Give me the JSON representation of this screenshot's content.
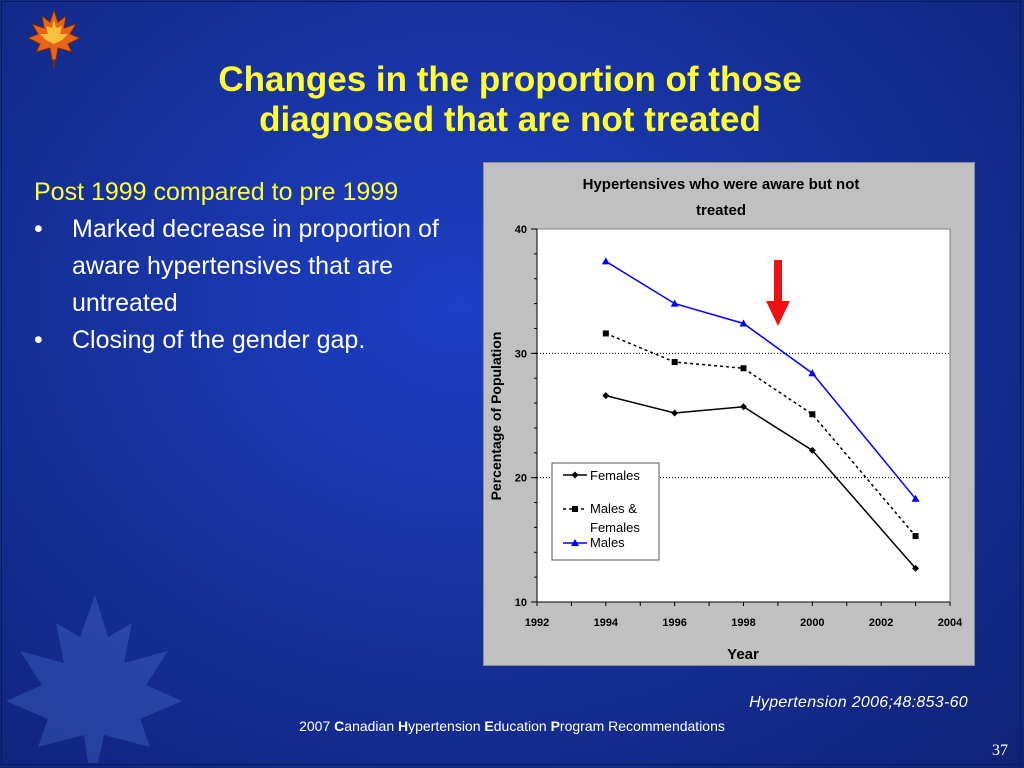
{
  "slide": {
    "title_line1": "Changes in the proportion of those",
    "title_line2": "diagnosed that are not treated",
    "lead": "Post 1999 compared to pre 1999",
    "bullets": [
      "Marked decrease in proportion of aware hypertensives that are untreated",
      "Closing of the gender gap."
    ],
    "bullet_char": "•",
    "citation": "Hypertension 2006;48:853-60",
    "footer": {
      "year": "2007",
      "w1_initial": "C",
      "w1_rest": "anadian",
      "w2_initial": "H",
      "w2_rest": "ypertension",
      "w3_initial": "E",
      "w3_rest": "ducation",
      "w4_initial": "P",
      "w4_rest": "rogram Recommendations"
    },
    "page_number": "37",
    "colors": {
      "background": "#1a38b4",
      "title": "#ffff33",
      "text": "#ffffff",
      "chart_bg": "#c0c0c0",
      "plot_bg": "#ffffff",
      "arrow": "#ee1111"
    },
    "icons": [
      "maple-leaf-logo-icon",
      "maple-leaf-watermark-icon"
    ]
  },
  "chart_data": {
    "type": "line",
    "title": "Hypertensives who were aware but not treated",
    "title_lines": [
      "Hypertensives who were aware but not",
      "treated"
    ],
    "xlabel": "Year",
    "ylabel": "Percentage of Population",
    "xlim": [
      1992,
      2004
    ],
    "ylim": [
      10,
      40
    ],
    "xticks": [
      1992,
      1994,
      1996,
      1998,
      2000,
      2002,
      2004
    ],
    "yticks": [
      10,
      20,
      30,
      40
    ],
    "gridlines_y": [
      20,
      30
    ],
    "legend": {
      "placement": "lower-left",
      "entries": [
        "Females",
        "Males & Females",
        "Males"
      ]
    },
    "legend_line2": {
      "Males & Females": [
        "Males &",
        "Females"
      ]
    },
    "annotation": "downward red arrow",
    "series": [
      {
        "name": "Females",
        "color": "#000000",
        "marker": "diamond",
        "dash": "solid",
        "x": [
          1994,
          1996,
          1998,
          2000,
          2003
        ],
        "values": [
          26.6,
          25.2,
          25.7,
          22.2,
          12.7
        ]
      },
      {
        "name": "Males & Females",
        "color": "#000000",
        "marker": "square",
        "dash": "dotted",
        "x": [
          1994,
          1996,
          1998,
          2000,
          2003
        ],
        "values": [
          31.6,
          29.3,
          28.8,
          25.1,
          15.3
        ]
      },
      {
        "name": "Males",
        "color": "#0000ff",
        "marker": "triangle",
        "dash": "solid",
        "x": [
          1994,
          1996,
          1998,
          2000,
          2003
        ],
        "values": [
          37.4,
          34.0,
          32.4,
          28.4,
          18.3
        ]
      }
    ]
  }
}
